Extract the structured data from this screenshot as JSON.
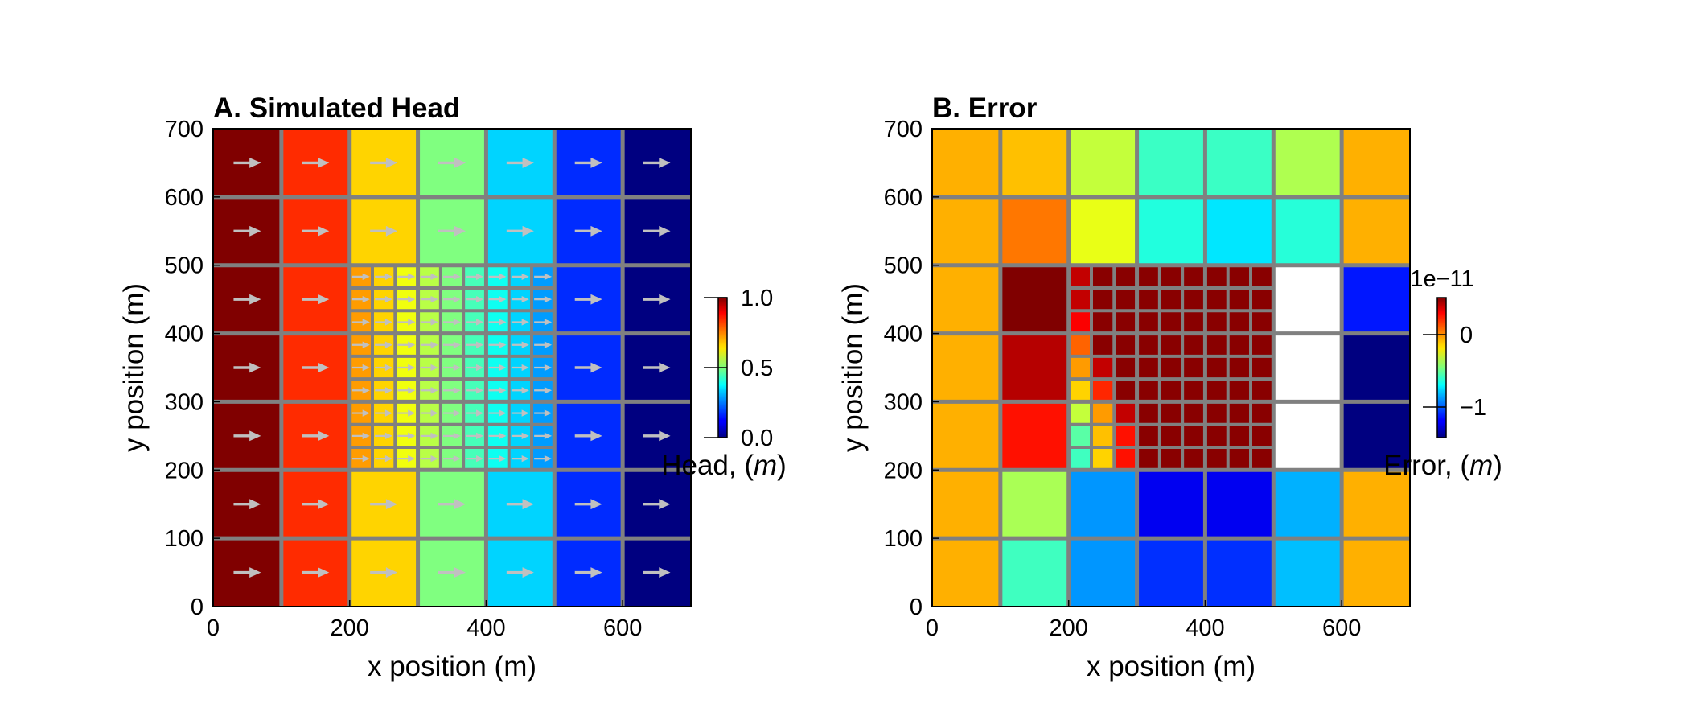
{
  "chart_data": [
    {
      "type": "heatmap",
      "title": "A. Simulated Head",
      "xlabel": "x position (m)",
      "ylabel": "y position (m)",
      "xlim": [
        0,
        700
      ],
      "ylim": [
        0,
        700
      ],
      "xticks": [
        "0",
        "200",
        "400",
        "600"
      ],
      "yticks": [
        "0",
        "100",
        "200",
        "300",
        "400",
        "500",
        "600",
        "700"
      ],
      "colormap": "jet",
      "grid_line_color": "#808080",
      "arrow_color": "#c0c0c0",
      "flow_direction": "+x",
      "coarse_cells": {
        "x_centers": [
          50,
          150,
          250,
          350,
          450,
          550,
          650
        ],
        "columns": [
          {
            "x_center": 50,
            "value": 1.0
          },
          {
            "x_center": 150,
            "value": 0.833
          },
          {
            "x_center": 250,
            "value": 0.667
          },
          {
            "x_center": 350,
            "value": 0.5
          },
          {
            "x_center": 450,
            "value": 0.333
          },
          {
            "x_center": 550,
            "value": 0.167
          },
          {
            "x_center": 650,
            "value": 0.0
          }
        ],
        "refined_region": {
          "x": [
            200,
            500
          ],
          "y": [
            200,
            500
          ]
        }
      },
      "refined_cells": {
        "x_centers": [
          216.7,
          250,
          283.3,
          316.7,
          350,
          383.3,
          416.7,
          450,
          483.3
        ],
        "values": [
          0.722,
          0.667,
          0.611,
          0.556,
          0.5,
          0.444,
          0.389,
          0.333,
          0.278
        ]
      },
      "colorbar": {
        "label": "Head, (m)",
        "label_prefix": "Head, (",
        "label_unit": "m",
        "label_suffix": ")",
        "range": [
          0.0,
          1.0
        ],
        "ticks": [
          "0.0",
          "0.5",
          "1.0"
        ]
      }
    },
    {
      "type": "heatmap",
      "title": "B. Error",
      "xlabel": "x position (m)",
      "ylabel": "y position (m)",
      "xlim": [
        0,
        700
      ],
      "ylim": [
        0,
        700
      ],
      "xticks": [
        "0",
        "200",
        "400",
        "600"
      ],
      "yticks": [
        "0",
        "100",
        "200",
        "300",
        "400",
        "500",
        "600",
        "700"
      ],
      "colormap": "jet",
      "grid_line_color": "#808080",
      "coarse_rows_top_to_bottom": [
        [
          0.702,
          0.687,
          0.567,
          0.432,
          0.432,
          0.547,
          0.702
        ],
        [
          0.702,
          0.758,
          0.603,
          0.407,
          0.351,
          0.412,
          0.702
        ],
        [
          0.702,
          1.0,
          null,
          null,
          null,
          null,
          0.147
        ],
        [
          0.702,
          0.947,
          null,
          null,
          null,
          null,
          0.0
        ],
        [
          0.702,
          0.859,
          null,
          null,
          null,
          null,
          0.0
        ],
        [
          0.702,
          0.542,
          0.272,
          0.111,
          0.111,
          0.299,
          0.702
        ],
        [
          0.702,
          0.437,
          0.272,
          0.171,
          0.171,
          0.312,
          0.702
        ]
      ],
      "refined_rows_top_to_bottom": [
        [
          0.934,
          0.991,
          0.991,
          0.991,
          0.991,
          0.991,
          0.991,
          0.991,
          0.991
        ],
        [
          0.934,
          0.991,
          0.991,
          0.991,
          0.991,
          0.991,
          0.991,
          0.991,
          0.991
        ],
        [
          0.879,
          0.991,
          0.991,
          0.991,
          0.991,
          0.991,
          0.991,
          0.991,
          0.991
        ],
        [
          0.778,
          0.991,
          0.991,
          0.991,
          0.991,
          0.991,
          0.991,
          0.991,
          0.991
        ],
        [
          0.723,
          0.934,
          0.991,
          0.991,
          0.991,
          0.991,
          0.991,
          0.991,
          0.991
        ],
        [
          0.668,
          0.838,
          0.991,
          0.991,
          0.991,
          0.991,
          0.991,
          0.991,
          0.991
        ],
        [
          0.567,
          0.723,
          0.934,
          0.991,
          0.991,
          0.991,
          0.991,
          0.991,
          0.991
        ],
        [
          0.462,
          0.687,
          0.859,
          0.991,
          0.991,
          0.991,
          0.991,
          0.991,
          0.991
        ],
        [
          0.437,
          0.668,
          0.859,
          0.991,
          0.991,
          0.991,
          0.991,
          0.991,
          0.991
        ]
      ],
      "colorbar": {
        "label": "Error, (m)",
        "label_prefix": "Error, (",
        "label_unit": "m",
        "label_suffix": ")",
        "ticks": [
          "0",
          "−1"
        ],
        "offset_text": "1e−11"
      }
    }
  ]
}
